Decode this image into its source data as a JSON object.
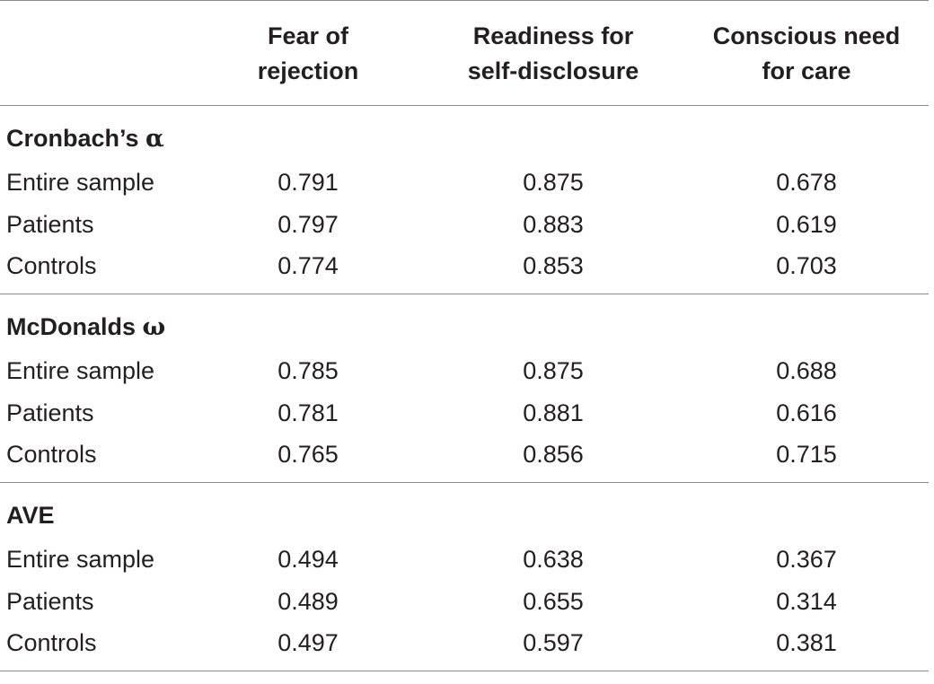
{
  "header": {
    "columns": [
      {
        "line1": "Fear of",
        "line2": "rejection"
      },
      {
        "line1": "Readiness for",
        "line2": "self-disclosure"
      },
      {
        "line1": "Conscious need",
        "line2": "for care"
      }
    ]
  },
  "sections": [
    {
      "title": "Cronbach’s ",
      "symbol": "α",
      "rows": [
        {
          "label": "Entire sample",
          "values": [
            "0.791",
            "0.875",
            "0.678"
          ]
        },
        {
          "label": "Patients",
          "values": [
            "0.797",
            "0.883",
            "0.619"
          ]
        },
        {
          "label": "Controls",
          "values": [
            "0.774",
            "0.853",
            "0.703"
          ]
        }
      ]
    },
    {
      "title": "McDonalds ",
      "symbol": "ω",
      "rows": [
        {
          "label": "Entire sample",
          "values": [
            "0.785",
            "0.875",
            "0.688"
          ]
        },
        {
          "label": "Patients",
          "values": [
            "0.781",
            "0.881",
            "0.616"
          ]
        },
        {
          "label": "Controls",
          "values": [
            "0.765",
            "0.856",
            "0.715"
          ]
        }
      ]
    },
    {
      "title": "AVE",
      "symbol": "",
      "rows": [
        {
          "label": "Entire sample",
          "values": [
            "0.494",
            "0.638",
            "0.367"
          ]
        },
        {
          "label": "Patients",
          "values": [
            "0.489",
            "0.655",
            "0.314"
          ]
        },
        {
          "label": "Controls",
          "values": [
            "0.497",
            "0.597",
            "0.381"
          ]
        }
      ]
    }
  ]
}
